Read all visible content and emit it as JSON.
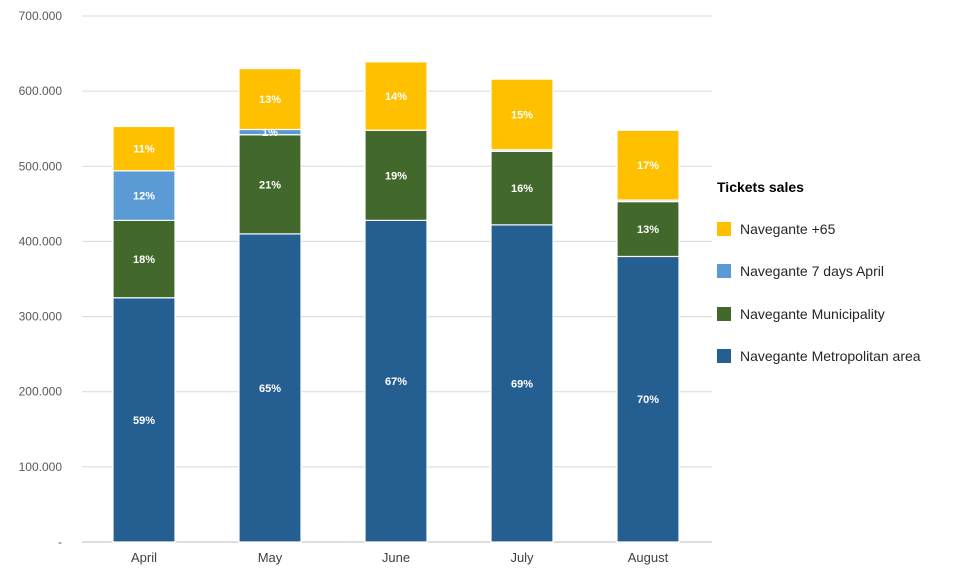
{
  "chart_data": {
    "type": "bar",
    "stacked": true,
    "categories": [
      "April",
      "May",
      "June",
      "July",
      "August"
    ],
    "ylim": [
      0,
      700000
    ],
    "yticks": [
      {
        "value": 0,
        "label": "-"
      },
      {
        "value": 100000,
        "label": "100.000"
      },
      {
        "value": 200000,
        "label": "200.000"
      },
      {
        "value": 300000,
        "label": "300.000"
      },
      {
        "value": 400000,
        "label": "400.000"
      },
      {
        "value": 500000,
        "label": "500.000"
      },
      {
        "value": 600000,
        "label": "600.000"
      },
      {
        "value": 700000,
        "label": "700.000"
      }
    ],
    "grid": true,
    "legend_title": "Tickets sales",
    "legend_position": "right",
    "series": [
      {
        "name": "Navegante Metropolitan area",
        "color": "#255E91",
        "values": [
          325000,
          410000,
          428000,
          422000,
          380000
        ],
        "labels": [
          "59%",
          "65%",
          "67%",
          "69%",
          "70%"
        ]
      },
      {
        "name": "Navegante Municipality",
        "color": "#43682B",
        "values": [
          103000,
          132000,
          120000,
          98000,
          73000
        ],
        "labels": [
          "18%",
          "21%",
          "19%",
          "16%",
          "13%"
        ]
      },
      {
        "name": "Navegante 7 days April",
        "color": "#5B9BD5",
        "values": [
          66000,
          7000,
          0,
          2000,
          2000
        ],
        "labels": [
          "12%",
          "1%",
          "",
          "",
          ""
        ]
      },
      {
        "name": "Navegante +65",
        "color": "#FFC000",
        "values": [
          59000,
          81000,
          91000,
          94000,
          93000
        ],
        "labels": [
          "11%",
          "13%",
          "14%",
          "15%",
          "17%"
        ]
      }
    ]
  }
}
